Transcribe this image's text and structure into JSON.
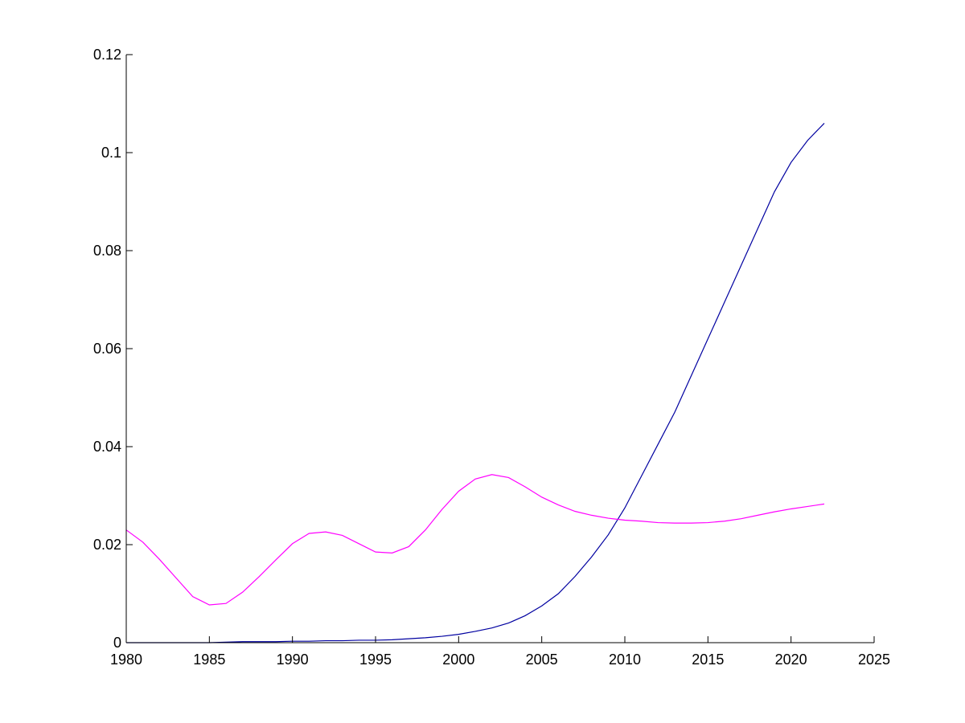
{
  "chart_data": {
    "type": "line",
    "title": "",
    "xlabel": "",
    "ylabel": "",
    "xlim": [
      1980,
      2025
    ],
    "ylim": [
      0,
      0.12
    ],
    "grid": false,
    "legend": "none",
    "x_ticks": [
      1980,
      1985,
      1990,
      1995,
      2000,
      2005,
      2010,
      2015,
      2020,
      2025
    ],
    "x_tick_labels": [
      "1980",
      "1985",
      "1990",
      "1995",
      "2000",
      "2005",
      "2010",
      "2015",
      "2020",
      "2025"
    ],
    "y_ticks": [
      0,
      0.02,
      0.04,
      0.06,
      0.08,
      0.1,
      0.12
    ],
    "y_tick_labels": [
      "0",
      "0.02",
      "0.04",
      "0.06",
      "0.08",
      "0.1",
      "0.12"
    ],
    "series": [
      {
        "color": "#0000a0",
        "x": [
          1980,
          1981,
          1982,
          1983,
          1984,
          1985,
          1986,
          1987,
          1988,
          1989,
          1990,
          1991,
          1992,
          1993,
          1994,
          1995,
          1996,
          1997,
          1998,
          1999,
          2000,
          2001,
          2002,
          2003,
          2004,
          2005,
          2006,
          2007,
          2008,
          2009,
          2010,
          2011,
          2012,
          2013,
          2014,
          2015,
          2016,
          2017,
          2018,
          2019,
          2020,
          2021,
          2022
        ],
        "y": [
          0,
          0,
          0,
          0,
          0,
          0,
          0.0001,
          0.0002,
          0.0002,
          0.0002,
          0.0003,
          0.0003,
          0.0004,
          0.0004,
          0.0005,
          0.0005,
          0.0006,
          0.0008,
          0.001,
          0.0013,
          0.0017,
          0.0023,
          0.003,
          0.004,
          0.0055,
          0.0075,
          0.01,
          0.0135,
          0.0175,
          0.022,
          0.0275,
          0.034,
          0.0405,
          0.047,
          0.0545,
          0.062,
          0.0695,
          0.077,
          0.0845,
          0.092,
          0.098,
          0.1025,
          0.106
        ]
      },
      {
        "color": "#ff00ff",
        "x": [
          1980,
          1981,
          1982,
          1983,
          1984,
          1985,
          1986,
          1987,
          1988,
          1989,
          1990,
          1991,
          1992,
          1993,
          1994,
          1995,
          1996,
          1997,
          1998,
          1999,
          2000,
          2001,
          2002,
          2003,
          2004,
          2005,
          2006,
          2007,
          2008,
          2009,
          2010,
          2011,
          2012,
          2013,
          2014,
          2015,
          2016,
          2017,
          2018,
          2019,
          2020,
          2021,
          2022
        ],
        "y": [
          0.023,
          0.0205,
          0.017,
          0.0132,
          0.0094,
          0.0077,
          0.008,
          0.0103,
          0.0135,
          0.0169,
          0.0202,
          0.0223,
          0.0226,
          0.0219,
          0.0202,
          0.0185,
          0.0183,
          0.0196,
          0.023,
          0.0272,
          0.0309,
          0.0334,
          0.0343,
          0.0337,
          0.0318,
          0.0297,
          0.0281,
          0.0268,
          0.026,
          0.0254,
          0.025,
          0.0248,
          0.0245,
          0.0244,
          0.0244,
          0.0245,
          0.0248,
          0.0253,
          0.026,
          0.0267,
          0.0273,
          0.0278,
          0.0283
        ]
      }
    ]
  }
}
